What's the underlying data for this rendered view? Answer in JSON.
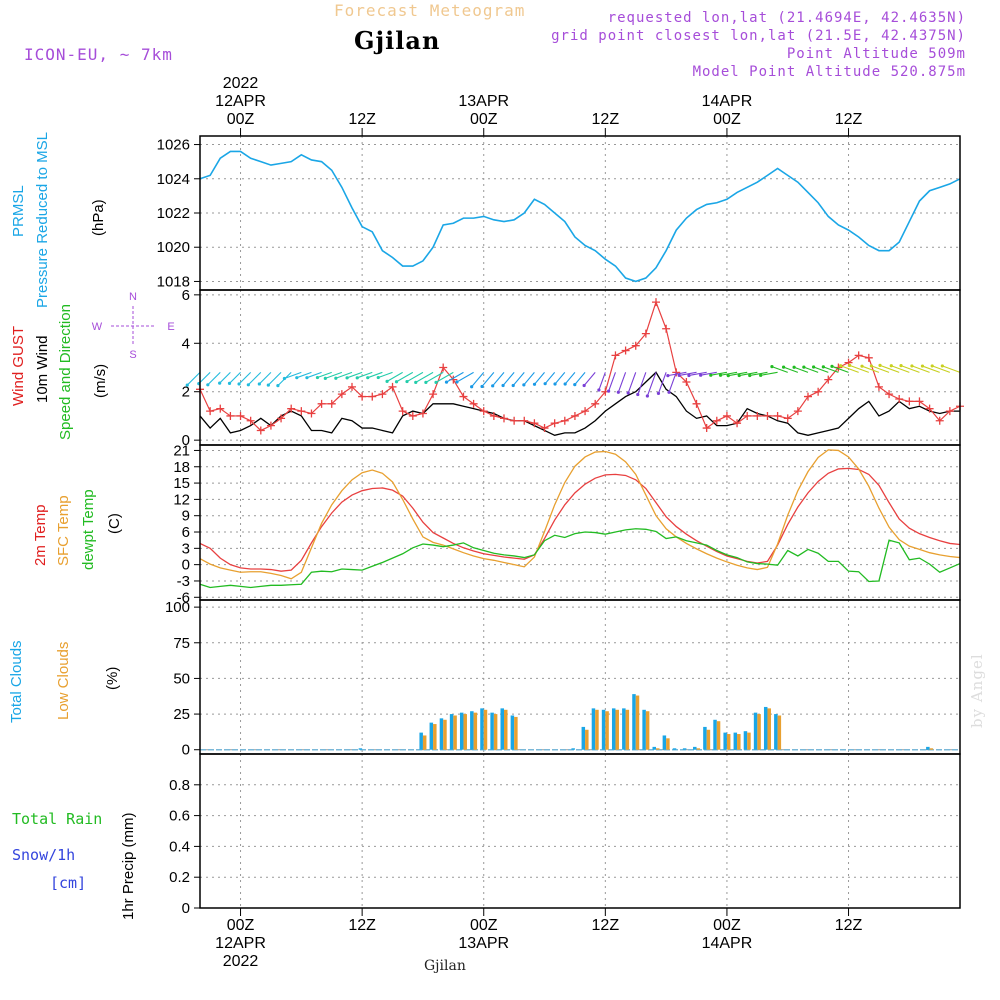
{
  "header": {
    "product": "Forecast Meteogram",
    "place": "Gjilan",
    "model": "ICON-EU, ~ 7km",
    "requested": "requested lon,lat (21.4694E, 42.4635N)",
    "gridpoint": "grid point closest lon,lat (21.5E, 42.4375N)",
    "point_alt": "Point Altitude 509m",
    "model_alt": "Model Point Altitude 520.875m"
  },
  "footer": {
    "place": "Gjilan",
    "watermark": "by Angel"
  },
  "time_axis": {
    "range": [
      -4,
      71
    ],
    "top_labels": [
      {
        "t": 0,
        "lines": [
          "2022",
          "12APR",
          "00Z"
        ]
      },
      {
        "t": 12,
        "lines": [
          "12Z"
        ]
      },
      {
        "t": 24,
        "lines": [
          "13APR",
          "00Z"
        ]
      },
      {
        "t": 36,
        "lines": [
          "12Z"
        ]
      },
      {
        "t": 48,
        "lines": [
          "14APR",
          "00Z"
        ]
      },
      {
        "t": 60,
        "lines": [
          "12Z"
        ]
      }
    ],
    "bottom_labels": [
      {
        "t": 0,
        "lines": [
          "00Z",
          "12APR",
          "2022"
        ]
      },
      {
        "t": 12,
        "lines": [
          "12Z"
        ]
      },
      {
        "t": 24,
        "lines": [
          "00Z",
          "13APR"
        ]
      },
      {
        "t": 36,
        "lines": [
          "12Z"
        ]
      },
      {
        "t": 48,
        "lines": [
          "00Z",
          "14APR"
        ]
      },
      {
        "t": 60,
        "lines": [
          "12Z"
        ]
      }
    ]
  },
  "panel_labels": {
    "pressure": [
      {
        "text": "PRMSL",
        "color": "#1aa6e6"
      },
      {
        "text": "Pressure Reduced to MSL",
        "color": "#1aa6e6"
      },
      {
        "text": "(hPa)",
        "color": "#000000"
      }
    ],
    "wind": [
      {
        "text": "Wind GUST",
        "color": "#e02020"
      },
      {
        "text": "10m Wind",
        "color": "#000000"
      },
      {
        "text": "Speed and Direction",
        "color": "#22bb22"
      },
      {
        "text": "(m/s)",
        "color": "#000000"
      }
    ],
    "compass": {
      "w": "W",
      "e": "E",
      "n": "N",
      "s": "S",
      "color": "#a64dd9"
    },
    "temp": [
      {
        "text": "2m Temp",
        "color": "#e02020"
      },
      {
        "text": "SFC Temp",
        "color": "#e8a030"
      },
      {
        "text": "dewpt Temp",
        "color": "#22bb22"
      },
      {
        "text": "(C)",
        "color": "#000000"
      }
    ],
    "clouds": [
      {
        "text": "Total Clouds",
        "color": "#1aa6e6"
      },
      {
        "text": "Low Clouds",
        "color": "#e8a030"
      },
      {
        "text": "(%)",
        "color": "#000000"
      }
    ],
    "precip": [
      {
        "text": "1hr Precip (mm)",
        "color": "#000000"
      }
    ],
    "precip_side": [
      {
        "text": "Total  Rain",
        "color": "#22bb22"
      },
      {
        "text": "Snow/1h",
        "color": "#3344dd"
      },
      {
        "text": "[cm]",
        "color": "#3344dd"
      }
    ]
  },
  "colors": {
    "pressure": "#1aa6e6",
    "gust": "#e84040",
    "wind": "#000000",
    "t2m": "#e84040",
    "tsfc": "#e8a030",
    "dewpt": "#22bb22",
    "total_clouds": "#1aa6e6",
    "low_clouds": "#e8a030",
    "title_product": "#f0c890",
    "header_info": "#a64dd9"
  },
  "chart_data": [
    {
      "type": "line",
      "panel": "pressure",
      "ylabel": "PRMSL Pressure Reduced to MSL (hPa)",
      "ylim": [
        1017.5,
        1026.5
      ],
      "yticks": [
        1018,
        1020,
        1022,
        1024,
        1026
      ],
      "x": [
        -4,
        -3,
        -2,
        -1,
        0,
        1,
        2,
        3,
        4,
        5,
        6,
        7,
        8,
        9,
        10,
        11,
        12,
        13,
        14,
        15,
        16,
        17,
        18,
        19,
        20,
        21,
        22,
        23,
        24,
        25,
        26,
        27,
        28,
        29,
        30,
        31,
        32,
        33,
        34,
        35,
        36,
        37,
        38,
        39,
        40,
        41,
        42,
        43,
        44,
        45,
        46,
        47,
        48,
        49,
        50,
        51,
        52,
        53,
        54,
        55,
        56,
        57,
        58,
        59,
        60,
        61,
        62,
        63,
        64,
        65,
        66,
        67,
        68,
        69,
        70,
        71
      ],
      "series": [
        {
          "name": "PRMSL",
          "values": [
            1024.0,
            1024.2,
            1025.2,
            1025.6,
            1025.6,
            1025.2,
            1025.0,
            1024.8,
            1024.9,
            1025.0,
            1025.4,
            1025.1,
            1025.0,
            1024.5,
            1023.5,
            1022.3,
            1021.2,
            1020.9,
            1019.8,
            1019.4,
            1018.9,
            1018.9,
            1019.2,
            1020.0,
            1021.3,
            1021.4,
            1021.7,
            1021.7,
            1021.8,
            1021.6,
            1021.5,
            1021.6,
            1022.0,
            1022.8,
            1022.5,
            1022.0,
            1021.5,
            1020.6,
            1020.1,
            1019.8,
            1019.3,
            1018.9,
            1018.2,
            1018.0,
            1018.2,
            1018.8,
            1019.8,
            1021.0,
            1021.7,
            1022.2,
            1022.5,
            1022.6,
            1022.8,
            1023.2,
            1023.5,
            1023.8,
            1024.2,
            1024.6,
            1024.2,
            1023.8,
            1023.2,
            1022.6,
            1021.8,
            1021.3,
            1021.0,
            1020.6,
            1020.1,
            1019.8,
            1019.8,
            1020.3,
            1021.5,
            1022.7,
            1023.3,
            1023.5,
            1023.7,
            1024.0
          ]
        }
      ]
    },
    {
      "type": "line",
      "panel": "wind",
      "ylabel": "Wind GUST / 10m Wind Speed and Direction (m/s)",
      "ylim": [
        -0.2,
        6.2
      ],
      "yticks": [
        0,
        2,
        4,
        6
      ],
      "x": [
        -4,
        -3,
        -2,
        -1,
        0,
        1,
        2,
        3,
        4,
        5,
        6,
        7,
        8,
        9,
        10,
        11,
        12,
        13,
        14,
        15,
        16,
        17,
        18,
        19,
        20,
        21,
        22,
        23,
        24,
        25,
        26,
        27,
        28,
        29,
        30,
        31,
        32,
        33,
        34,
        35,
        36,
        37,
        38,
        39,
        40,
        41,
        42,
        43,
        44,
        45,
        46,
        47,
        48,
        49,
        50,
        51,
        52,
        53,
        54,
        55,
        56,
        57,
        58,
        59,
        60,
        61,
        62,
        63,
        64,
        65,
        66,
        67,
        68,
        69,
        70,
        71
      ],
      "series": [
        {
          "name": "Wind GUST",
          "values": [
            2.1,
            1.2,
            1.3,
            1.0,
            1.0,
            0.8,
            0.4,
            0.6,
            0.9,
            1.3,
            1.2,
            1.1,
            1.5,
            1.5,
            1.9,
            2.2,
            1.8,
            1.8,
            1.9,
            2.2,
            1.2,
            1.0,
            1.1,
            1.9,
            3.0,
            2.5,
            1.8,
            1.5,
            1.2,
            1.0,
            0.9,
            0.8,
            0.8,
            0.7,
            0.5,
            0.7,
            0.8,
            1.0,
            1.2,
            1.5,
            2.0,
            3.5,
            3.7,
            3.9,
            4.4,
            5.7,
            4.6,
            2.8,
            2.4,
            1.5,
            0.5,
            0.8,
            1.0,
            0.7,
            1.0,
            1.0,
            1.0,
            1.0,
            0.9,
            1.2,
            1.8,
            2.0,
            2.5,
            3.0,
            3.2,
            3.5,
            3.4,
            2.2,
            1.9,
            1.7,
            1.6,
            1.6,
            1.3,
            0.8,
            1.2,
            1.4
          ]
        },
        {
          "name": "10m Wind",
          "values": [
            1.0,
            0.5,
            0.9,
            0.3,
            0.4,
            0.6,
            0.9,
            0.6,
            1.0,
            1.2,
            1.0,
            0.4,
            0.4,
            0.3,
            0.9,
            0.8,
            0.5,
            0.5,
            0.4,
            0.3,
            1.0,
            1.2,
            1.1,
            1.5,
            1.5,
            1.5,
            1.4,
            1.3,
            1.2,
            1.1,
            0.9,
            0.8,
            0.8,
            0.6,
            0.4,
            0.2,
            0.3,
            0.3,
            0.5,
            0.8,
            1.2,
            1.5,
            1.8,
            2.0,
            2.4,
            2.8,
            2.1,
            1.8,
            1.2,
            0.9,
            1.0,
            0.6,
            0.6,
            0.7,
            1.3,
            1.1,
            1.0,
            0.8,
            0.7,
            0.3,
            0.2,
            0.3,
            0.4,
            0.5,
            0.9,
            1.3,
            1.6,
            1.0,
            1.2,
            1.6,
            1.3,
            1.4,
            1.2,
            1.1,
            1.2,
            1.2
          ]
        }
      ]
    },
    {
      "type": "line",
      "panel": "temperature",
      "ylabel": "2m Temp / SFC Temp / dewpt Temp (C)",
      "ylim": [
        -6.5,
        22
      ],
      "yticks": [
        -6,
        -3,
        0,
        3,
        6,
        9,
        12,
        15,
        18,
        21
      ],
      "x": [
        -4,
        -3,
        -2,
        -1,
        0,
        1,
        2,
        3,
        4,
        5,
        6,
        7,
        8,
        9,
        10,
        11,
        12,
        13,
        14,
        15,
        16,
        17,
        18,
        19,
        20,
        21,
        22,
        23,
        24,
        25,
        26,
        27,
        28,
        29,
        30,
        31,
        32,
        33,
        34,
        35,
        36,
        37,
        38,
        39,
        40,
        41,
        42,
        43,
        44,
        45,
        46,
        47,
        48,
        49,
        50,
        51,
        52,
        53,
        54,
        55,
        56,
        57,
        58,
        59,
        60,
        61,
        62,
        63,
        64,
        65,
        66,
        67,
        68,
        69,
        70,
        71
      ],
      "series": [
        {
          "name": "2m Temp",
          "values": [
            3.9,
            3.0,
            1.2,
            0.0,
            -0.6,
            -0.8,
            -0.8,
            -0.9,
            -1.2,
            -1.0,
            0.8,
            4.0,
            7.0,
            9.5,
            11.5,
            12.8,
            13.6,
            14.0,
            14.1,
            13.7,
            12.6,
            10.4,
            7.8,
            5.9,
            4.9,
            3.9,
            3.1,
            2.5,
            2.0,
            1.7,
            1.4,
            1.2,
            1.0,
            1.8,
            4.8,
            8.2,
            11.0,
            13.2,
            14.8,
            15.9,
            16.5,
            16.6,
            16.4,
            15.6,
            14.0,
            11.4,
            8.8,
            7.0,
            5.6,
            4.4,
            3.4,
            2.4,
            1.6,
            1.1,
            0.6,
            0.3,
            0.6,
            3.6,
            7.4,
            10.6,
            13.2,
            15.3,
            16.8,
            17.6,
            17.7,
            17.5,
            16.6,
            14.6,
            11.4,
            8.4,
            6.7,
            5.7,
            5.0,
            4.4,
            3.9,
            3.7
          ]
        },
        {
          "name": "SFC Temp",
          "values": [
            1.1,
            0.1,
            -0.6,
            -1.0,
            -1.4,
            -1.3,
            -1.3,
            -1.6,
            -2.0,
            -2.6,
            -1.4,
            3.1,
            7.6,
            11.0,
            13.6,
            15.6,
            16.9,
            17.4,
            16.8,
            15.2,
            12.0,
            8.4,
            5.1,
            4.1,
            3.6,
            2.9,
            2.2,
            1.6,
            1.1,
            0.8,
            0.4,
            0.0,
            -0.4,
            1.4,
            6.1,
            11.0,
            15.1,
            18.1,
            19.8,
            20.7,
            20.8,
            20.3,
            18.9,
            16.6,
            12.8,
            9.0,
            6.6,
            5.1,
            3.9,
            2.9,
            2.0,
            1.2,
            0.5,
            -0.1,
            -0.6,
            -0.9,
            -0.5,
            3.8,
            9.1,
            13.6,
            17.1,
            19.7,
            21.1,
            21.0,
            19.8,
            17.6,
            14.4,
            10.4,
            6.9,
            4.6,
            3.4,
            2.8,
            2.2,
            1.8,
            1.5,
            1.3
          ]
        },
        {
          "name": "dewpt Temp",
          "values": [
            -3.6,
            -4.2,
            -4.0,
            -3.8,
            -4.0,
            -4.2,
            -4.0,
            -3.8,
            -3.8,
            -3.7,
            -3.6,
            -1.4,
            -1.2,
            -1.3,
            -0.8,
            -0.9,
            -1.0,
            -0.3,
            0.4,
            1.2,
            2.0,
            3.1,
            3.8,
            3.6,
            3.3,
            3.6,
            4.0,
            3.1,
            2.6,
            2.1,
            1.8,
            1.6,
            1.3,
            1.8,
            4.4,
            5.4,
            5.0,
            5.7,
            6.0,
            5.9,
            5.6,
            6.0,
            6.4,
            6.6,
            6.5,
            6.1,
            4.8,
            5.1,
            4.4,
            4.0,
            3.6,
            2.6,
            1.8,
            1.3,
            0.5,
            0.2,
            0.1,
            -0.1,
            2.6,
            1.6,
            2.8,
            2.1,
            0.6,
            0.6,
            -1.2,
            -1.3,
            -3.1,
            -3.0,
            4.5,
            4.0,
            0.9,
            1.2,
            0.1,
            -1.4,
            -0.6,
            0.2
          ]
        }
      ]
    },
    {
      "type": "bar",
      "panel": "clouds",
      "ylabel": "Total Clouds / Low Clouds (%)",
      "ylim": [
        -3,
        105
      ],
      "yticks": [
        0,
        25,
        50,
        75,
        100
      ],
      "x": [
        -4,
        -3,
        -2,
        -1,
        0,
        1,
        2,
        3,
        4,
        5,
        6,
        7,
        8,
        9,
        10,
        11,
        12,
        13,
        14,
        15,
        16,
        17,
        18,
        19,
        20,
        21,
        22,
        23,
        24,
        25,
        26,
        27,
        28,
        29,
        30,
        31,
        32,
        33,
        34,
        35,
        36,
        37,
        38,
        39,
        40,
        41,
        42,
        43,
        44,
        45,
        46,
        47,
        48,
        49,
        50,
        51,
        52,
        53,
        54,
        55,
        56,
        57,
        58,
        59,
        60,
        61,
        62,
        63,
        64,
        65,
        66,
        67,
        68,
        69,
        70,
        71
      ],
      "series": [
        {
          "name": "Total Clouds",
          "values": [
            0,
            0,
            0,
            0,
            0,
            0,
            0,
            0,
            0,
            0,
            0,
            0,
            0,
            0,
            0,
            0,
            1,
            0,
            0,
            0,
            0,
            0,
            12,
            19,
            22,
            25,
            26,
            27,
            29,
            26,
            29,
            24,
            0,
            0,
            0,
            0,
            0,
            1,
            16,
            29,
            28,
            29,
            29,
            39,
            28,
            2,
            10,
            1,
            1,
            2,
            16,
            21,
            12,
            12,
            13,
            26,
            30,
            25,
            0,
            0,
            0,
            0,
            0,
            0,
            0,
            0,
            0,
            0,
            0,
            0,
            0,
            0,
            2,
            0,
            0,
            0
          ]
        },
        {
          "name": "Low Clouds",
          "values": [
            0,
            0,
            0,
            0,
            0,
            0,
            0,
            0,
            0,
            0,
            0,
            0,
            0,
            0,
            0,
            0,
            0,
            0,
            0,
            0,
            0,
            0,
            10,
            18,
            21,
            24,
            25,
            26,
            28,
            25,
            28,
            23,
            0,
            0,
            0,
            0,
            0,
            0,
            14,
            28,
            27,
            28,
            28,
            38,
            27,
            1,
            8,
            0,
            0,
            1,
            14,
            20,
            11,
            11,
            12,
            25,
            29,
            24,
            0,
            0,
            0,
            0,
            0,
            0,
            0,
            0,
            0,
            0,
            0,
            0,
            0,
            0,
            1,
            0,
            0,
            0
          ]
        }
      ]
    },
    {
      "type": "bar",
      "panel": "precipitation",
      "ylabel": "1hr Precip (mm)",
      "ylim": [
        0,
        1.0
      ],
      "yticks": [
        0,
        0.2,
        0.4,
        0.6,
        0.8
      ],
      "x": [
        -4,
        71
      ],
      "series": [
        {
          "name": "Total Rain",
          "values": [
            0,
            0
          ]
        }
      ]
    }
  ]
}
